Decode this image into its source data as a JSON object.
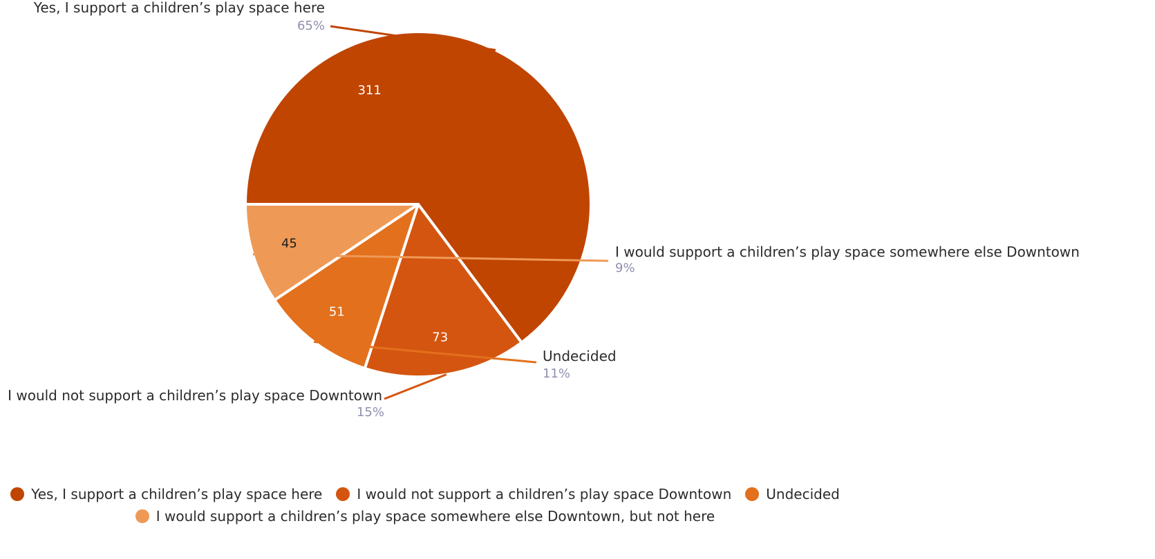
{
  "chart_data": {
    "type": "pie",
    "slices": [
      {
        "label": "Yes, I support a children’s play space here",
        "callout": "Yes, I support a children’s play space here",
        "value": 311,
        "percent": "65%",
        "color": "#c04500",
        "value_color": "#ffffff"
      },
      {
        "label": "I would not support a children’s play space Downtown",
        "callout": "I would not support a children’s play space Downtown",
        "value": 73,
        "percent": "15%",
        "color": "#d45510",
        "value_color": "#ffffff"
      },
      {
        "label": "Undecided",
        "callout": "Undecided",
        "value": 51,
        "percent": "11%",
        "color": "#e3701c",
        "value_color": "#ffffff"
      },
      {
        "label": "I would support a children’s play space somewhere else Downtown, but not here",
        "callout": "I would support a children’s play space somewhere else Downtown",
        "value": 45,
        "percent": "9%",
        "color": "#ee9a56",
        "value_color": "#1a1a1a"
      }
    ],
    "legend_position": "bottom"
  }
}
